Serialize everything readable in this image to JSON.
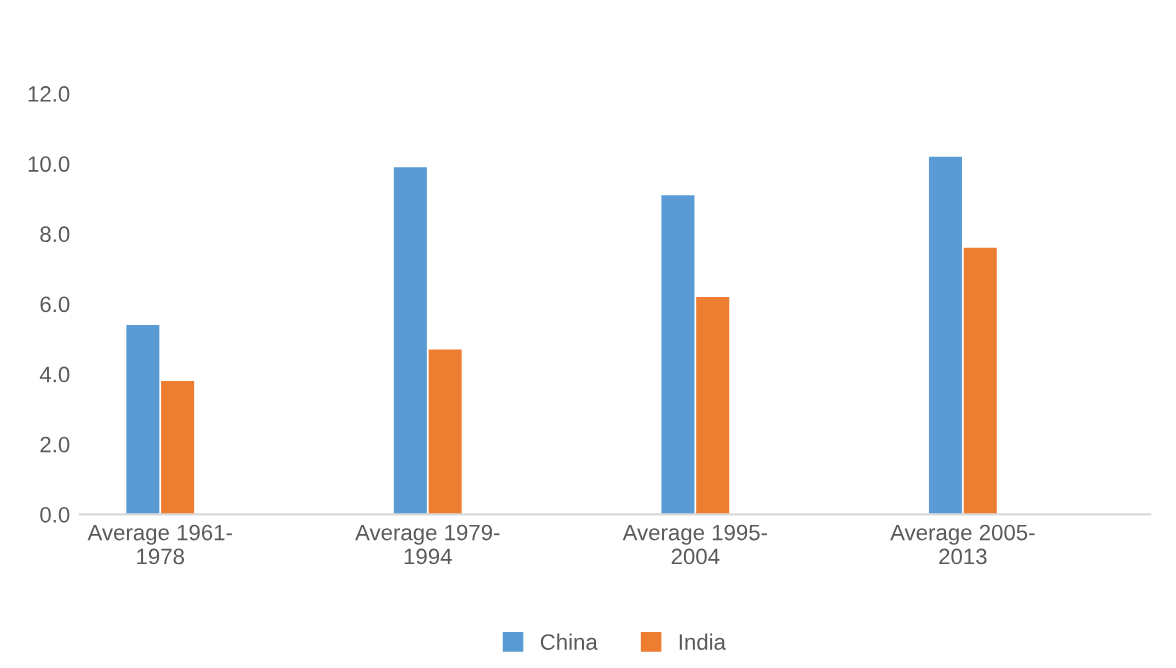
{
  "chart_data": {
    "type": "bar",
    "categories": [
      "Average 1961-1978",
      "Average 1979-1994",
      "Average 1995-2004",
      "Average 2005-2013"
    ],
    "series": [
      {
        "name": "China",
        "color": "#5b9bd5",
        "values": [
          5.4,
          9.9,
          9.1,
          10.2
        ]
      },
      {
        "name": "India",
        "color": "#ed7d31",
        "values": [
          3.8,
          4.7,
          6.2,
          7.6
        ]
      }
    ],
    "ylim": [
      0,
      12
    ],
    "yticks": [
      {
        "value": 0,
        "label": "0.0"
      },
      {
        "value": 2,
        "label": "2.0"
      },
      {
        "value": 4,
        "label": "4.0"
      },
      {
        "value": 6,
        "label": "6.0"
      },
      {
        "value": 8,
        "label": "8.0"
      },
      {
        "value": 10,
        "label": "10.0"
      },
      {
        "value": 12,
        "label": "12.0"
      }
    ],
    "grid": false,
    "legend": "bottom"
  }
}
